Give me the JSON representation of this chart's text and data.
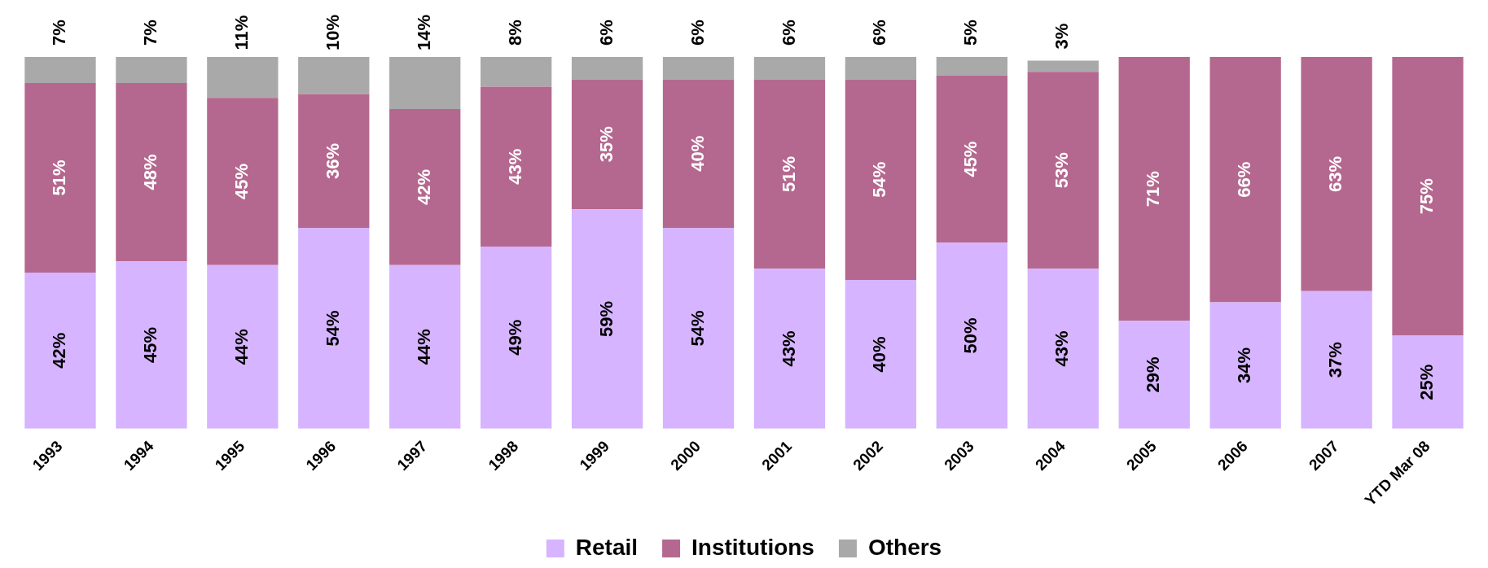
{
  "chart_data": {
    "type": "bar",
    "stacked": true,
    "legend": "bottom",
    "grid": false,
    "categories": [
      "1993",
      "1994",
      "1995",
      "1996",
      "1997",
      "1998",
      "1999",
      "2000",
      "2001",
      "2002",
      "2003",
      "2004",
      "2005",
      "2006",
      "2007",
      "YTD Mar 08"
    ],
    "series": [
      {
        "name": "Retail",
        "color": "#d6b4ff",
        "values": [
          42,
          45,
          44,
          54,
          44,
          49,
          59,
          54,
          43,
          40,
          50,
          43,
          29,
          34,
          37,
          25
        ],
        "value_labels": [
          "42%",
          "45%",
          "44%",
          "54%",
          "44%",
          "49%",
          "59%",
          "54%",
          "43%",
          "40%",
          "50%",
          "43%",
          "29%",
          "34%",
          "37%",
          "25%"
        ]
      },
      {
        "name": "Institutions",
        "color": "#b5688f",
        "values": [
          51,
          48,
          45,
          36,
          42,
          43,
          35,
          40,
          51,
          54,
          45,
          53,
          71,
          66,
          63,
          75
        ],
        "value_labels": [
          "51%",
          "48%",
          "45%",
          "36%",
          "42%",
          "43%",
          "35%",
          "40%",
          "51%",
          "54%",
          "45%",
          "53%",
          "71%",
          "66%",
          "63%",
          "75%"
        ]
      },
      {
        "name": "Others",
        "color": "#a9a9a9",
        "values": [
          7,
          7,
          11,
          10,
          14,
          8,
          6,
          6,
          6,
          6,
          5,
          3,
          null,
          null,
          null,
          null
        ],
        "value_labels": [
          "7%",
          "7%",
          "11%",
          "10%",
          "14%",
          "8%",
          "6%",
          "6%",
          "6%",
          "6%",
          "5%",
          "3%",
          null,
          null,
          null,
          null
        ]
      }
    ]
  }
}
